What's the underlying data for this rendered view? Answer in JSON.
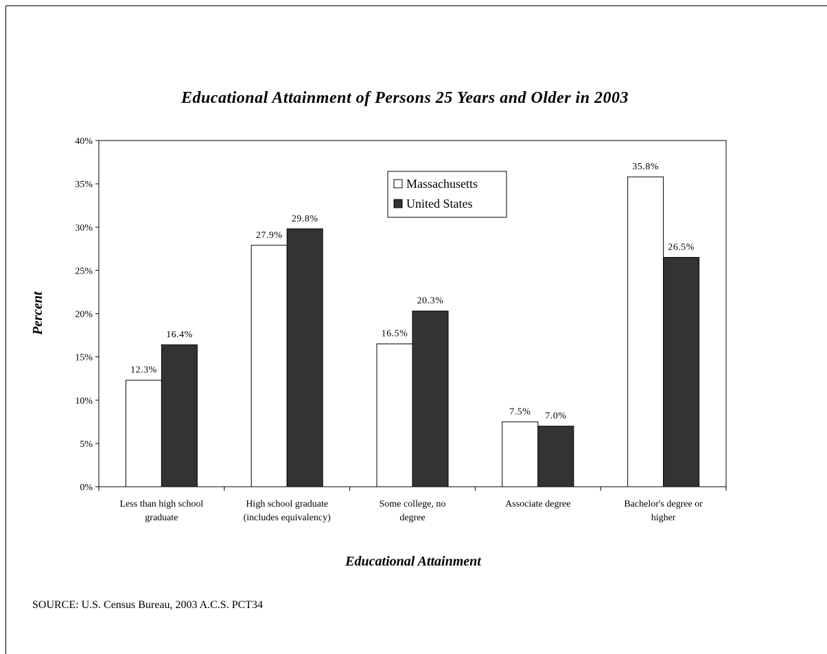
{
  "chart_data": {
    "type": "bar",
    "title": "Educational Attainment of Persons 25 Years and Older in 2003",
    "xlabel": "Educational Attainment",
    "ylabel": "Percent",
    "ylim": [
      0,
      40
    ],
    "ytick_step": 5,
    "ytick_labels": [
      "0%",
      "5%",
      "10%",
      "15%",
      "20%",
      "25%",
      "30%",
      "35%",
      "40%"
    ],
    "categories": [
      [
        "Less than high school",
        "graduate"
      ],
      [
        "High school graduate",
        "(includes equivalency)"
      ],
      [
        "Some college, no",
        "degree"
      ],
      [
        "Associate degree"
      ],
      [
        "Bachelor's degree or",
        "higher"
      ]
    ],
    "series": [
      {
        "name": "Massachusetts",
        "color": "#ffffff",
        "values": [
          12.3,
          27.9,
          16.5,
          7.5,
          35.8
        ],
        "labels": [
          "12.3%",
          "27.9%",
          "16.5%",
          "7.5%",
          "35.8%"
        ]
      },
      {
        "name": "United States",
        "color": "#333333",
        "values": [
          16.4,
          29.8,
          20.3,
          7.0,
          26.5
        ],
        "labels": [
          "16.4%",
          "29.8%",
          "20.3%",
          "7.0%",
          "26.5%"
        ]
      }
    ],
    "legend_position": "top-center",
    "grid": false
  },
  "source": "SOURCE: U.S. Census Bureau, 2003 A.C.S. PCT34"
}
